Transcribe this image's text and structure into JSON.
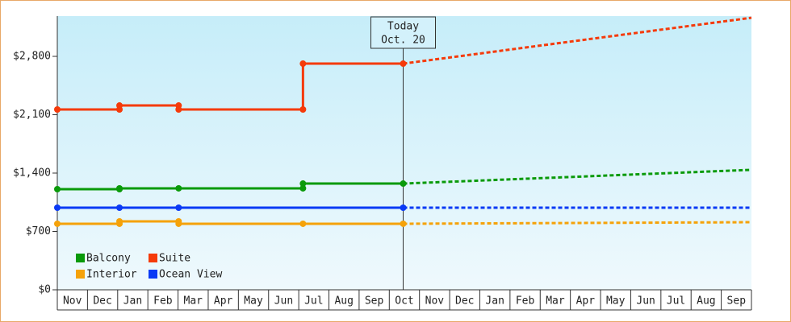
{
  "chart_data": {
    "type": "line",
    "categories": [
      "Nov",
      "Dec",
      "Jan",
      "Feb",
      "Mar",
      "Apr",
      "May",
      "Jun",
      "Jul",
      "Aug",
      "Sep",
      "Oct",
      "Nov",
      "Dec",
      "Jan",
      "Feb",
      "Mar",
      "Apr",
      "May",
      "Jun",
      "Jul",
      "Aug",
      "Sep"
    ],
    "xlim": [
      0,
      23
    ],
    "ylim": [
      0,
      3283
    ],
    "yticks": [
      {
        "value": 0,
        "label": "$0"
      },
      {
        "value": 700,
        "label": "$700"
      },
      {
        "value": 1400,
        "label": "$1,400"
      },
      {
        "value": 2100,
        "label": "$2,100"
      },
      {
        "value": 2800,
        "label": "$2,800"
      }
    ],
    "annotation": {
      "x": 11.46,
      "lines": [
        "Today",
        "Oct. 20"
      ]
    },
    "series": [
      {
        "name": "Balcony",
        "color": "#0a9a0a",
        "x": [
          0,
          2.06,
          2.06,
          4.02,
          8.14,
          8.14,
          11.46
        ],
        "values": [
          1207,
          1207,
          1217,
          1217,
          1217,
          1274,
          1274
        ],
        "forecast": {
          "x": [
            11.46,
            23
          ],
          "values": [
            1274,
            1439
          ]
        }
      },
      {
        "name": "Suite",
        "color": "#f53a0a",
        "x": [
          0,
          2.06,
          2.06,
          4.02,
          4.02,
          8.14,
          8.14,
          11.46
        ],
        "values": [
          2163,
          2163,
          2211,
          2211,
          2163,
          2163,
          2713,
          2713
        ],
        "forecast": {
          "x": [
            11.46,
            23
          ],
          "values": [
            2713,
            3263
          ]
        }
      },
      {
        "name": "Interior",
        "color": "#f5a20a",
        "x": [
          0,
          2.06,
          2.06,
          4.02,
          4.02,
          8.14,
          11.46
        ],
        "values": [
          792,
          792,
          821,
          821,
          792,
          792,
          792
        ],
        "forecast": {
          "x": [
            11.46,
            23
          ],
          "values": [
            792,
            811
          ]
        }
      },
      {
        "name": "Ocean View",
        "color": "#0a3af5",
        "x": [
          0,
          2.06,
          4.02,
          11.46
        ],
        "values": [
          985,
          985,
          985,
          985
        ],
        "forecast": {
          "x": [
            11.46,
            23
          ],
          "values": [
            985,
            985
          ]
        }
      }
    ]
  }
}
